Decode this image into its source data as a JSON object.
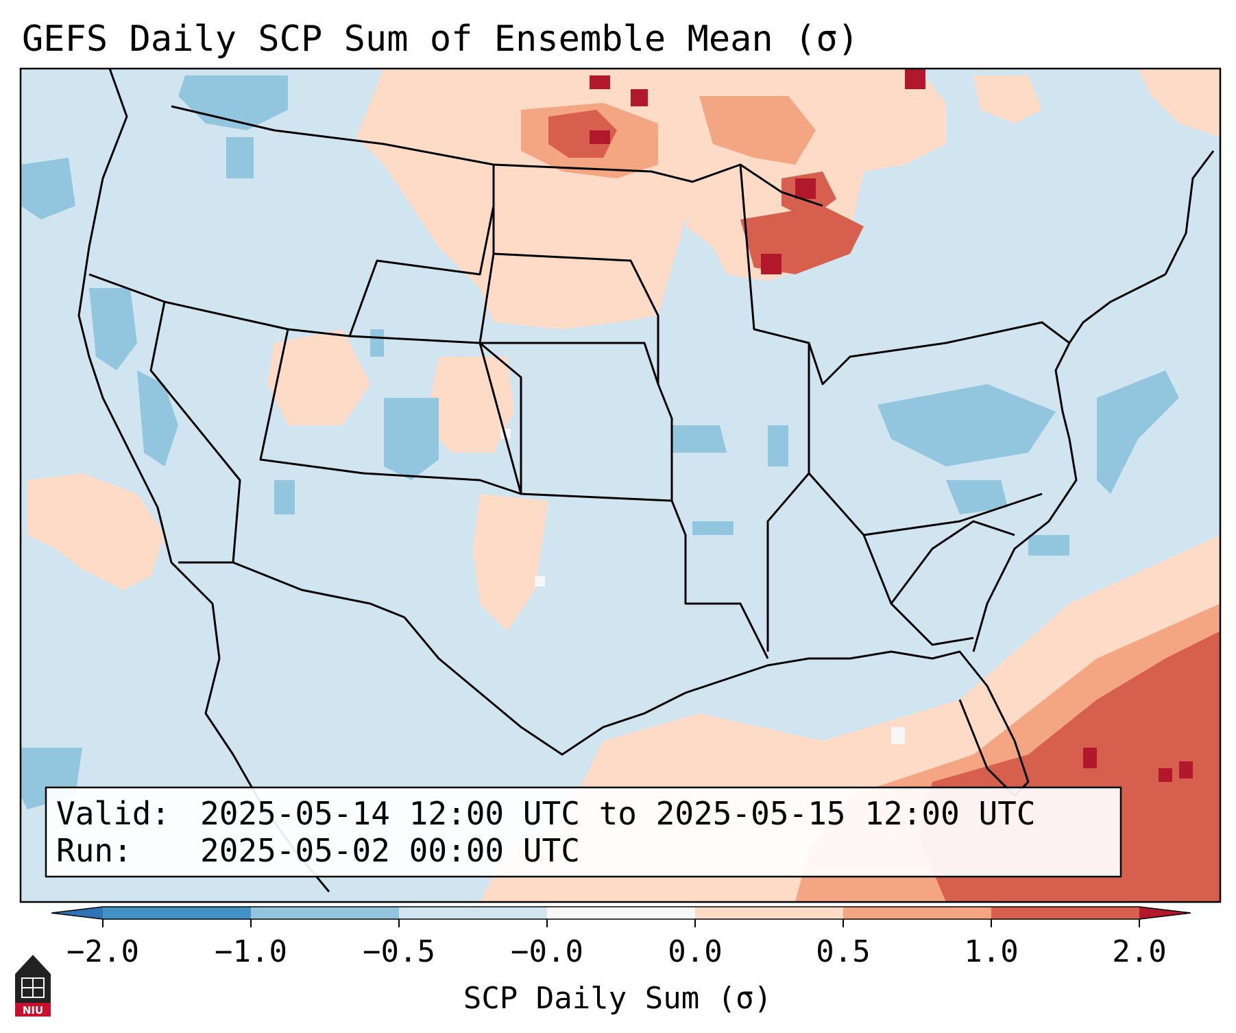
{
  "title": "GEFS Daily SCP Sum of Ensemble Mean (σ)",
  "info": {
    "valid_label": "Valid:",
    "valid_value": "2025-05-14 12:00 UTC to 2025-05-15 12:00 UTC",
    "run_label": "Run:",
    "run_value": "2025-05-02 00:00 UTC"
  },
  "colorbar": {
    "label": "SCP Daily Sum (σ)",
    "tick_labels": [
      "−2.0",
      "−1.0",
      "−0.5",
      "−0.0",
      "0.0",
      "0.5",
      "1.0",
      "2.0"
    ],
    "colors": {
      "extend_low": "#2d73b5",
      "bin_1": "#4392c6",
      "bin_2": "#92c5de",
      "bin_3": "#d1e5f0",
      "bin_4": "#f7f7f7",
      "bin_5": "#fddbc7",
      "bin_6": "#f4a582",
      "bin_7": "#d6604d",
      "extend_high": "#b2182b"
    }
  },
  "logo": {
    "text": "NIU",
    "color": "#c8102e"
  },
  "map": {
    "region": "CONUS",
    "base_color": "#d1e5f0",
    "border_color": "#000000"
  }
}
